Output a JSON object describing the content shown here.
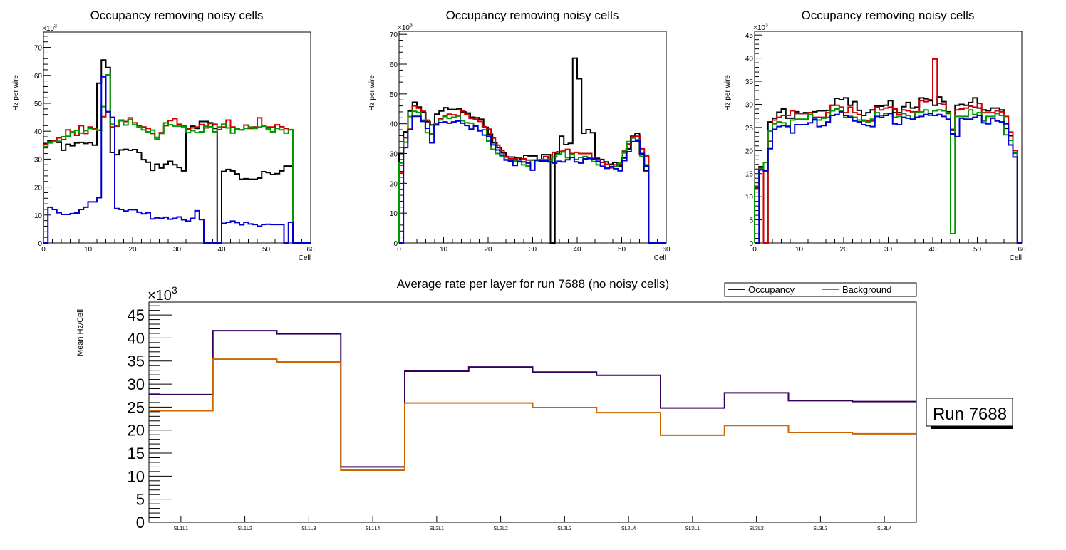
{
  "colors": {
    "black": "#000000",
    "red": "#cc0000",
    "green": "#009900",
    "blue": "#0000cc",
    "occupancy": "#33005c",
    "background": "#cc6600"
  },
  "chart_data": [
    {
      "type": "histogram-step",
      "title": "Occupancy removing noisy cells",
      "xlabel": "Cell",
      "ylabel": "Hz per wire",
      "y_multiplier": "×10^3",
      "xlim": [
        0,
        60
      ],
      "ylim": [
        0,
        75.5
      ],
      "x_ticks": [
        0,
        10,
        20,
        30,
        40,
        50,
        60
      ],
      "y_ticks": [
        0,
        10,
        20,
        30,
        40,
        50,
        60,
        70
      ],
      "series": [
        {
          "name": "black",
          "color": "#000000",
          "values": [
            35.5,
            36.5,
            36.5,
            36,
            33.2,
            35.3,
            34.8,
            35.8,
            36,
            35.6,
            35.9,
            35,
            57.2,
            65.5,
            62.8,
            32.4,
            31.6,
            33.3,
            33.5,
            33.2,
            33.4,
            32.4,
            29.8,
            28.9,
            26,
            28.2,
            26.8,
            28.2,
            29.2,
            28,
            27,
            25.8,
            41,
            41.8,
            41,
            43.5,
            43.5,
            43,
            41,
            0,
            25.6,
            26.3,
            25.8,
            24.7,
            22.8,
            23,
            22.8,
            22.8,
            23.2,
            25.5,
            25.2,
            24.5,
            24.8,
            25.8,
            27.5,
            27.5,
            0,
            0,
            0,
            0
          ]
        },
        {
          "name": "red",
          "color": "#cc0000",
          "values": [
            35.3,
            36.2,
            36.6,
            37.6,
            37,
            40.5,
            39.5,
            38.5,
            42,
            39.2,
            41.5,
            41,
            40.4,
            45.2,
            47,
            41.5,
            41.8,
            44,
            43.5,
            44.8,
            43,
            42,
            41.5,
            41,
            39.2,
            37.8,
            39.5,
            42,
            43.8,
            44.5,
            42.5,
            42,
            40.8,
            41.2,
            41.5,
            42.4,
            41.2,
            42.8,
            42.5,
            40.6,
            41.5,
            44,
            41.5,
            40.6,
            40.5,
            42.2,
            41,
            41.5,
            44.8,
            42,
            41.5,
            41.5,
            42.3,
            41.6,
            41,
            40.5,
            0,
            0,
            0,
            0
          ]
        },
        {
          "name": "green",
          "color": "#009900",
          "values": [
            34.5,
            35.8,
            36.2,
            36.4,
            38,
            38.2,
            39.8,
            40.3,
            39.3,
            40.2,
            41,
            40.6,
            40.3,
            48.8,
            60.2,
            42.5,
            42,
            43.7,
            42.2,
            44.2,
            42.3,
            41.5,
            40.5,
            39.8,
            40.4,
            37.2,
            39.2,
            43,
            42.3,
            41.8,
            41.8,
            41.6,
            39.5,
            40.2,
            39.5,
            39.8,
            41.8,
            41.6,
            39.8,
            41.5,
            42.5,
            41.2,
            39.3,
            40.8,
            40.5,
            41,
            41.5,
            41,
            41.5,
            41.8,
            40.8,
            39.8,
            41,
            40.5,
            39.3,
            40.6,
            0,
            0,
            0,
            0
          ]
        },
        {
          "name": "blue",
          "color": "#0000cc",
          "values": [
            0,
            12.8,
            12,
            10.8,
            10.2,
            10.2,
            10.5,
            10.7,
            12,
            12.8,
            14.7,
            14.7,
            16.2,
            59.5,
            47,
            45,
            12.3,
            12,
            11.4,
            11.9,
            11.9,
            11,
            10.4,
            10.8,
            8.6,
            9,
            8.8,
            9.2,
            8.5,
            8.8,
            9.3,
            8.3,
            7.8,
            8.8,
            11.5,
            8.4,
            0,
            0,
            0,
            0,
            7,
            7.4,
            7.8,
            7.3,
            6.5,
            7.4,
            6.8,
            6.6,
            6,
            6.6,
            6.7,
            6.6,
            6.6,
            6.6,
            0,
            7.4,
            0,
            0,
            0,
            0
          ]
        }
      ]
    },
    {
      "type": "histogram-step",
      "title": "Occupancy removing noisy cells",
      "xlabel": "Cell",
      "ylabel": "Hz per wire",
      "y_multiplier": "×10^3",
      "xlim": [
        0,
        60
      ],
      "ylim": [
        0,
        71
      ],
      "x_ticks": [
        0,
        10,
        20,
        30,
        40,
        50,
        60
      ],
      "y_ticks": [
        0,
        10,
        20,
        30,
        40,
        50,
        60,
        70
      ],
      "series": [
        {
          "name": "black",
          "color": "#000000",
          "values": [
            30,
            37.3,
            44.3,
            47.2,
            45.6,
            43.8,
            40.7,
            39.6,
            43.2,
            44.3,
            45.4,
            44.8,
            44.8,
            45,
            44,
            43.6,
            42.2,
            42,
            41.5,
            38.8,
            36.5,
            33.6,
            32,
            30.2,
            28.8,
            28.8,
            28.5,
            28.2,
            29.4,
            29.2,
            29.2,
            27.6,
            29.6,
            29.6,
            0,
            30,
            35.8,
            33,
            33.4,
            62,
            55.1,
            36.8,
            38,
            37,
            28.4,
            28,
            27.2,
            26.4,
            27,
            25.8,
            28.5,
            31.6,
            35.8,
            36.8,
            29.6,
            24.2,
            0,
            0,
            0,
            0
          ]
        },
        {
          "name": "red",
          "color": "#cc0000",
          "values": [
            23.4,
            35.3,
            38.2,
            46,
            45.2,
            44.2,
            41.2,
            36.5,
            40,
            41.8,
            42.8,
            43.2,
            43,
            42.6,
            44.3,
            43.2,
            41.8,
            41.5,
            40.8,
            39,
            38.2,
            35.2,
            32.8,
            31,
            29,
            28.2,
            28.2,
            28.6,
            28.2,
            27.8,
            27.8,
            27.8,
            27.5,
            29,
            28,
            30.4,
            30.6,
            30.8,
            31.4,
            30,
            30.4,
            30,
            30,
            30,
            28.4,
            28,
            27,
            26.4,
            25.2,
            26.2,
            26.4,
            30.8,
            33.2,
            35.6,
            35.8,
            31.6,
            29.2,
            0,
            0,
            0,
            0
          ]
        },
        {
          "name": "green",
          "color": "#009900",
          "values": [
            26.8,
            33.8,
            42.4,
            44.2,
            43.8,
            41.2,
            37,
            36.6,
            40.2,
            41.3,
            42.4,
            41.8,
            42.2,
            42.6,
            41,
            40.3,
            40.2,
            39.2,
            37.8,
            38,
            34.2,
            31.4,
            30,
            29.2,
            28,
            27.8,
            27.5,
            27.2,
            26.2,
            25.8,
            27.8,
            27.6,
            28,
            28,
            27.7,
            28.8,
            29.8,
            30.5,
            28.6,
            29.6,
            28,
            28.7,
            29,
            28.5,
            27.3,
            26.2,
            25.8,
            25.2,
            25.6,
            25.6,
            26.8,
            30.2,
            34,
            35.2,
            34.6,
            29,
            26.2,
            0,
            0,
            0,
            0
          ]
        },
        {
          "name": "blue",
          "color": "#0000cc",
          "values": [
            0,
            32,
            38,
            42.5,
            42.5,
            40.8,
            38.5,
            33.6,
            39.6,
            40.4,
            40.6,
            40.2,
            40.6,
            40.9,
            40.2,
            39.4,
            38.2,
            39.2,
            37.6,
            36.2,
            35.8,
            32.9,
            31.2,
            29.5,
            27.8,
            27.5,
            26,
            27.4,
            27.2,
            26.8,
            24.4,
            27.8,
            27.5,
            27.5,
            27.2,
            26.8,
            27.4,
            27.2,
            27.9,
            28.7,
            27.2,
            26.8,
            28.2,
            28.3,
            28.2,
            27.4,
            25.6,
            25,
            25.6,
            24.9,
            24.2,
            27.6,
            30.6,
            34,
            34.2,
            30,
            25.8,
            0,
            0,
            0,
            0
          ]
        }
      ]
    },
    {
      "type": "histogram-step",
      "title": "Occupancy removing noisy cells",
      "xlabel": "Cell",
      "ylabel": "Hz per wire",
      "y_multiplier": "×10^3",
      "xlim": [
        0,
        60
      ],
      "ylim": [
        0,
        45.8
      ],
      "x_ticks": [
        0,
        10,
        20,
        30,
        40,
        50,
        60
      ],
      "y_ticks": [
        0,
        5,
        10,
        15,
        20,
        25,
        30,
        35,
        40,
        45
      ],
      "series": [
        {
          "name": "black",
          "color": "#000000",
          "values": [
            12,
            16.5,
            0,
            26.2,
            27,
            28.3,
            29,
            27,
            27,
            28.4,
            28,
            28.2,
            28.2,
            28.4,
            28.6,
            28.6,
            28.7,
            29.8,
            31.3,
            31,
            31.4,
            29.8,
            30.6,
            28.7,
            27.6,
            28.2,
            28.8,
            29.6,
            29.6,
            29.8,
            30.8,
            28.2,
            28.2,
            29.5,
            30.4,
            29.2,
            29.4,
            31.4,
            31.2,
            30.8,
            29.8,
            31.6,
            30.6,
            28.4,
            24.4,
            29.8,
            30,
            29.8,
            30.4,
            31.4,
            29.2,
            28.8,
            28.6,
            29.2,
            29.2,
            28.8,
            24.8,
            23.2,
            19.6,
            0
          ]
        },
        {
          "name": "red",
          "color": "#cc0000",
          "values": [
            11.8,
            16.2,
            0,
            22,
            26.6,
            27.2,
            27.6,
            27.6,
            28.6,
            28,
            28,
            28,
            28.2,
            27.2,
            27.2,
            27.2,
            28.2,
            29.8,
            29.8,
            29.4,
            28.2,
            29.4,
            28.2,
            27.8,
            26.6,
            26.4,
            26.4,
            29.4,
            28.8,
            29.2,
            29.4,
            29,
            27.8,
            28.8,
            28.6,
            28.4,
            28.4,
            30.8,
            30.6,
            31,
            39.8,
            30.2,
            30,
            28,
            24.6,
            28.8,
            29,
            29.2,
            29.6,
            29.4,
            30.2,
            28.2,
            28.2,
            28.2,
            28.6,
            28.4,
            27.4,
            24,
            20,
            0
          ]
        },
        {
          "name": "green",
          "color": "#009900",
          "values": [
            12.3,
            16,
            17.4,
            24.2,
            25.8,
            26.2,
            26,
            25.4,
            26.6,
            26.8,
            26.8,
            26.8,
            27.8,
            26.6,
            26.6,
            27,
            27.2,
            28.6,
            29,
            28.6,
            27.2,
            27.4,
            27.2,
            26.6,
            26.4,
            26.2,
            26.8,
            28.2,
            27.6,
            28,
            28,
            27.2,
            27.4,
            28,
            27.6,
            26.8,
            28.2,
            28.4,
            28.8,
            27.6,
            28.6,
            28.8,
            28.6,
            28.2,
            2,
            27.4,
            27.4,
            27.4,
            28.8,
            27.8,
            28.2,
            26.4,
            27.4,
            27.4,
            28,
            27.6,
            23.4,
            22.2,
            19.4,
            0
          ]
        },
        {
          "name": "blue",
          "color": "#0000cc",
          "values": [
            0,
            15.8,
            15.6,
            20.4,
            24.6,
            25.2,
            25.4,
            25.2,
            23.8,
            25.6,
            25.6,
            25.6,
            26,
            26.8,
            25.2,
            25.4,
            26.2,
            27.6,
            27.8,
            28.4,
            27.6,
            27.2,
            26.4,
            26.2,
            25.6,
            25.4,
            25.2,
            27.4,
            27.2,
            27.6,
            28,
            25.8,
            25.6,
            27.2,
            27,
            26.8,
            27.2,
            27.4,
            27.8,
            28,
            27.6,
            27.8,
            27.4,
            26.8,
            23.6,
            23,
            27,
            26.8,
            26.8,
            27.2,
            27.6,
            26,
            25.8,
            27,
            26.4,
            26.2,
            25.8,
            21.2,
            18.6,
            0
          ]
        }
      ]
    },
    {
      "type": "step",
      "title": "Average rate per layer for run 7688 (no noisy cells)",
      "xlabel": "",
      "ylabel": "Mean Hz/Cell",
      "y_multiplier": "×10^3",
      "categories": [
        "SL1L1",
        "SL1L2",
        "SL1L3",
        "SL1L4",
        "SL2L1",
        "SL2L2",
        "SL2L3",
        "SL2L4",
        "SL3L1",
        "SL3L2",
        "SL3L3",
        "SL3L4"
      ],
      "ylim": [
        0,
        47.8
      ],
      "y_ticks": [
        0,
        5,
        10,
        15,
        20,
        25,
        30,
        35,
        40,
        45
      ],
      "legend": {
        "placement": "top-right",
        "entries": [
          "Occupancy",
          "Background"
        ]
      },
      "series": [
        {
          "name": "Occupancy",
          "color": "#33005c",
          "values": [
            27.7,
            41.6,
            40.9,
            12.0,
            32.8,
            33.7,
            32.6,
            31.9,
            24.8,
            28.1,
            26.4,
            26.2
          ]
        },
        {
          "name": "Background",
          "color": "#cc6600",
          "values": [
            24.2,
            35.4,
            34.8,
            11.3,
            25.9,
            25.9,
            24.9,
            23.8,
            18.9,
            21.0,
            19.5,
            19.2
          ]
        }
      ],
      "annotation": "Run 7688"
    }
  ]
}
